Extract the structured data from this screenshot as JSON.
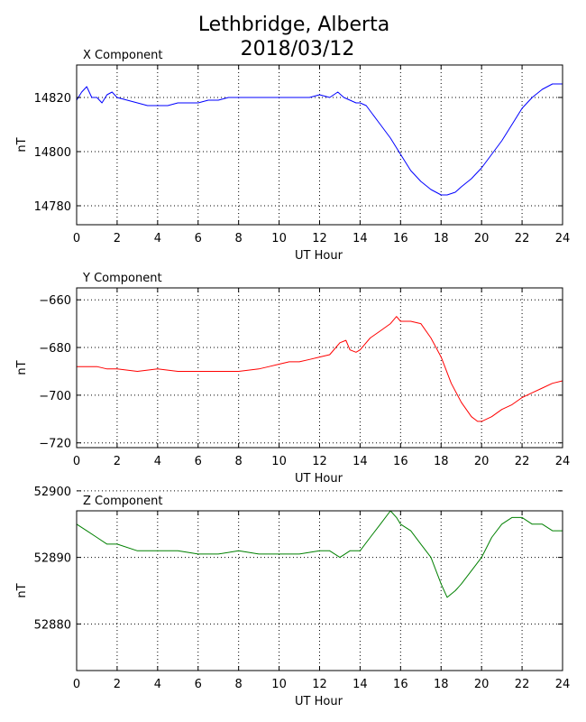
{
  "title_line1": "Lethbridge, Alberta",
  "title_line2": "2018/03/12",
  "chart_data": [
    {
      "type": "line",
      "title": "X Component",
      "xlabel": "UT Hour",
      "ylabel": "nT",
      "xlim": [
        0,
        24
      ],
      "ylim": [
        14773,
        14832
      ],
      "xticks": [
        0,
        2,
        4,
        6,
        8,
        10,
        12,
        14,
        16,
        18,
        20,
        22,
        24
      ],
      "yticks": [
        14780,
        14800,
        14820
      ],
      "grid": true,
      "series": [
        {
          "color": "#0000ff",
          "x": [
            0,
            0.25,
            0.5,
            0.75,
            1,
            1.25,
            1.5,
            1.75,
            2,
            2.5,
            3,
            3.5,
            4,
            4.5,
            5,
            5.5,
            6,
            6.5,
            7,
            7.5,
            8,
            8.5,
            9,
            9.5,
            10,
            10.5,
            11,
            11.5,
            12,
            12.5,
            12.9,
            13.2,
            13.5,
            13.8,
            14,
            14.3,
            14.6,
            15,
            15.5,
            16,
            16.5,
            17,
            17.5,
            18,
            18.3,
            18.7,
            19,
            19.5,
            20,
            20.5,
            21,
            21.5,
            22,
            22.5,
            23,
            23.5,
            24
          ],
          "y": [
            14819,
            14822,
            14824,
            14820,
            14820,
            14818,
            14821,
            14822,
            14820,
            14819,
            14818,
            14817,
            14817,
            14817,
            14818,
            14818,
            14818,
            14819,
            14819,
            14820,
            14820,
            14820,
            14820,
            14820,
            14820,
            14820,
            14820,
            14820,
            14821,
            14820,
            14822,
            14820,
            14819,
            14818,
            14818,
            14817,
            14814,
            14810,
            14805,
            14799,
            14793,
            14789,
            14786,
            14784,
            14784,
            14785,
            14787,
            14790,
            14794,
            14799,
            14804,
            14810,
            14816,
            14820,
            14823,
            14825,
            14825
          ]
        }
      ]
    },
    {
      "type": "line",
      "title": "Y Component",
      "xlabel": "UT Hour",
      "ylabel": "nT",
      "xlim": [
        0,
        24
      ],
      "ylim": [
        -722,
        -655
      ],
      "xticks": [
        0,
        2,
        4,
        6,
        8,
        10,
        12,
        14,
        16,
        18,
        20,
        22,
        24
      ],
      "yticks": [
        -720,
        -700,
        -680,
        -660
      ],
      "grid": true,
      "series": [
        {
          "color": "#ff0000",
          "x": [
            0,
            0.5,
            1,
            1.5,
            2,
            3,
            4,
            5,
            6,
            7,
            8,
            9,
            9.5,
            10,
            10.5,
            11,
            11.5,
            12,
            12.5,
            13,
            13.3,
            13.5,
            13.8,
            14,
            14.5,
            15,
            15.5,
            15.8,
            16,
            16.5,
            17,
            17.5,
            18,
            18.5,
            19,
            19.5,
            19.8,
            20,
            20.5,
            21,
            21.5,
            22,
            22.5,
            23,
            23.5,
            24
          ],
          "y": [
            -688,
            -688,
            -688,
            -689,
            -689,
            -690,
            -689,
            -690,
            -690,
            -690,
            -690,
            -689,
            -688,
            -687,
            -686,
            -686,
            -685,
            -684,
            -683,
            -678,
            -677,
            -681,
            -682,
            -681,
            -676,
            -673,
            -670,
            -667,
            -669,
            -669,
            -670,
            -676,
            -684,
            -695,
            -703,
            -709,
            -711,
            -711,
            -709,
            -706,
            -704,
            -701,
            -699,
            -697,
            -695,
            -694
          ]
        }
      ]
    },
    {
      "type": "line",
      "title": "Z Component",
      "xlabel": "UT Hour",
      "ylabel": "nT",
      "xlim": [
        0,
        24
      ],
      "ylim": [
        52873,
        52897
      ],
      "xticks": [
        0,
        2,
        4,
        6,
        8,
        10,
        12,
        14,
        16,
        18,
        20,
        22,
        24
      ],
      "yticks": [
        52880,
        52890,
        52900
      ],
      "grid": true,
      "series": [
        {
          "color": "#008000",
          "x": [
            0,
            0.5,
            1,
            1.5,
            2,
            3,
            4,
            5,
            6,
            7,
            8,
            9,
            10,
            11,
            12,
            12.5,
            13,
            13.5,
            14,
            14.5,
            15,
            15.5,
            15.8,
            16,
            16.5,
            17,
            17.5,
            18,
            18.3,
            18.7,
            19,
            19.5,
            20,
            20.5,
            21,
            21.5,
            22,
            22.5,
            23,
            23.5,
            24
          ],
          "y": [
            52895,
            52894,
            52893,
            52892,
            52892,
            52891,
            52891,
            52891,
            52890.5,
            52890.5,
            52891,
            52890.5,
            52890.5,
            52890.5,
            52891,
            52891,
            52890,
            52891,
            52891,
            52893,
            52895,
            52897,
            52896,
            52895,
            52894,
            52892,
            52890,
            52886,
            52884,
            52885,
            52886,
            52888,
            52890,
            52893,
            52895,
            52896,
            52896,
            52895,
            52895,
            52894,
            52894
          ]
        }
      ]
    }
  ]
}
